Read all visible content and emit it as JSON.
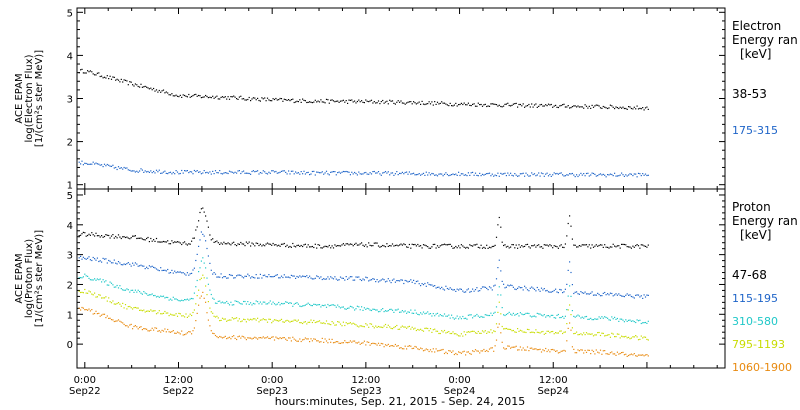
{
  "chart_data": [
    {
      "type": "scatter",
      "panel": "electron",
      "ylabel_lines": [
        "ACE EPAM",
        "log(Electron Flux)",
        "[1/(cm²s ster MeV)]"
      ],
      "ylim": [
        0.9,
        5.1
      ],
      "yticks": [
        1,
        2,
        3,
        4,
        5
      ],
      "legend_title": [
        "Electron",
        "Energy ran",
        "[keV]"
      ],
      "x_hours": [
        0,
        6,
        12,
        18,
        24,
        30,
        36,
        42,
        48,
        54,
        60,
        66,
        72
      ],
      "series": [
        {
          "name": "38-53",
          "color": "#000000",
          "values": [
            3.65,
            3.35,
            3.08,
            3.04,
            2.98,
            2.95,
            2.94,
            2.92,
            2.88,
            2.86,
            2.84,
            2.82,
            2.79
          ]
        },
        {
          "name": "175-315",
          "color": "#1e64c8",
          "values": [
            1.52,
            1.35,
            1.3,
            1.3,
            1.3,
            1.28,
            1.28,
            1.27,
            1.26,
            1.25,
            1.25,
            1.24,
            1.24
          ]
        }
      ]
    },
    {
      "type": "scatter",
      "panel": "proton",
      "ylabel_lines": [
        "ACE EPAM",
        "log(Proton Flux)",
        "[1/(cm²s ster MeV)]"
      ],
      "ylim": [
        -0.8,
        5.2
      ],
      "yticks": [
        0,
        1,
        2,
        3,
        4,
        5
      ],
      "legend_title": [
        "Proton",
        "Energy ran",
        "[keV]"
      ],
      "x_hours": [
        0,
        6,
        12,
        18,
        24,
        30,
        36,
        42,
        48,
        54,
        60,
        66,
        72
      ],
      "series": [
        {
          "name": "47-68",
          "color": "#000000",
          "values": [
            3.7,
            3.6,
            3.4,
            3.4,
            3.35,
            3.3,
            3.35,
            3.3,
            3.3,
            3.3,
            3.3,
            3.3,
            3.3
          ]
        },
        {
          "name": "115-195",
          "color": "#1e64c8",
          "values": [
            2.9,
            2.7,
            2.4,
            2.3,
            2.3,
            2.25,
            2.2,
            2.1,
            1.8,
            1.95,
            1.8,
            1.7,
            1.6
          ]
        },
        {
          "name": "310-580",
          "color": "#20c8c8",
          "values": [
            2.3,
            1.8,
            1.5,
            1.4,
            1.4,
            1.3,
            1.2,
            1.1,
            0.9,
            1.05,
            0.95,
            0.9,
            0.75
          ]
        },
        {
          "name": "795-1193",
          "color": "#c8dc00",
          "values": [
            1.8,
            1.2,
            1.0,
            0.85,
            0.8,
            0.75,
            0.65,
            0.55,
            0.35,
            0.5,
            0.4,
            0.35,
            0.2
          ]
        },
        {
          "name": "1060-1900",
          "color": "#e88a10",
          "values": [
            1.2,
            0.6,
            0.4,
            0.25,
            0.2,
            0.15,
            0.05,
            -0.1,
            -0.3,
            -0.1,
            -0.2,
            -0.25,
            -0.4
          ]
        }
      ]
    }
  ],
  "x_axis": {
    "ticks": [
      {
        "hours": 0,
        "time": "0:00",
        "date": "Sep22"
      },
      {
        "hours": 12,
        "time": "12:00",
        "date": "Sep22"
      },
      {
        "hours": 24,
        "time": "0:00",
        "date": "Sep23"
      },
      {
        "hours": 36,
        "time": "12:00",
        "date": "Sep23"
      },
      {
        "hours": 48,
        "time": "0:00",
        "date": "Sep24"
      },
      {
        "hours": 60,
        "time": "12:00",
        "date": "Sep24"
      }
    ],
    "xlim_hours": [
      -1,
      82
    ],
    "label": "hours:minutes, Sep. 21, 2015 - Sep. 24, 2015"
  }
}
